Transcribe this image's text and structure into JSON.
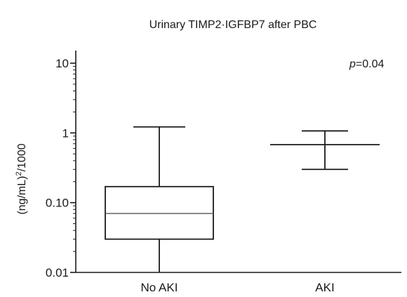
{
  "chart_data": {
    "type": "box",
    "title": "Urinary TIMP2·IGFBP7 after PBC",
    "ylabel": {
      "main": "(ng/mL)",
      "superscript": "2",
      "suffix": "/1000"
    },
    "y_scale": "log",
    "ylim": [
      0.01,
      10
    ],
    "yticks": [
      {
        "value": 0.01,
        "label": "0.01"
      },
      {
        "value": 0.1,
        "label": "0.10"
      },
      {
        "value": 1,
        "label": "1"
      },
      {
        "value": 10,
        "label": "10"
      }
    ],
    "categories": [
      "No AKI",
      "AKI"
    ],
    "series": [
      {
        "category": "No AKI",
        "kind": "box",
        "whisker_low": 0.01,
        "q1": 0.03,
        "median": 0.07,
        "q3": 0.17,
        "whisker_high": 1.22
      },
      {
        "category": "AKI",
        "kind": "mean_range",
        "low": 0.3,
        "center": 0.68,
        "high": 1.07
      }
    ],
    "annotation": {
      "prefix": "p",
      "value": "=0.04"
    },
    "grid": false
  }
}
